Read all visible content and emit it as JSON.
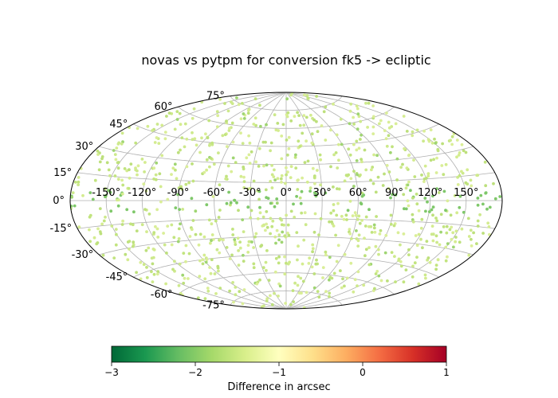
{
  "chart_data": {
    "type": "scatter",
    "projection": "aitoff",
    "title": "novas vs pytpm for conversion fk5 -> ecliptic",
    "grid": true,
    "x_ticks": [
      "-150°",
      "-120°",
      "-90°",
      "-60°",
      "-30°",
      "0°",
      "30°",
      "60°",
      "90°",
      "120°",
      "150°"
    ],
    "y_ticks": [
      "75°",
      "60°",
      "45°",
      "30°",
      "15°",
      "0°",
      "-15°",
      "-30°",
      "-45°",
      "-60°",
      "-75°"
    ],
    "colorbar": {
      "label": "Difference in arcsec",
      "range": [
        -3,
        1
      ],
      "colormap": "RdYlGn_r",
      "ticks": [
        "−3",
        "−2",
        "−1",
        "0",
        "1"
      ]
    },
    "point_color_typical": "#cde98c",
    "point_color_dark": "#7fc86a",
    "point_count_estimate": 1000
  }
}
